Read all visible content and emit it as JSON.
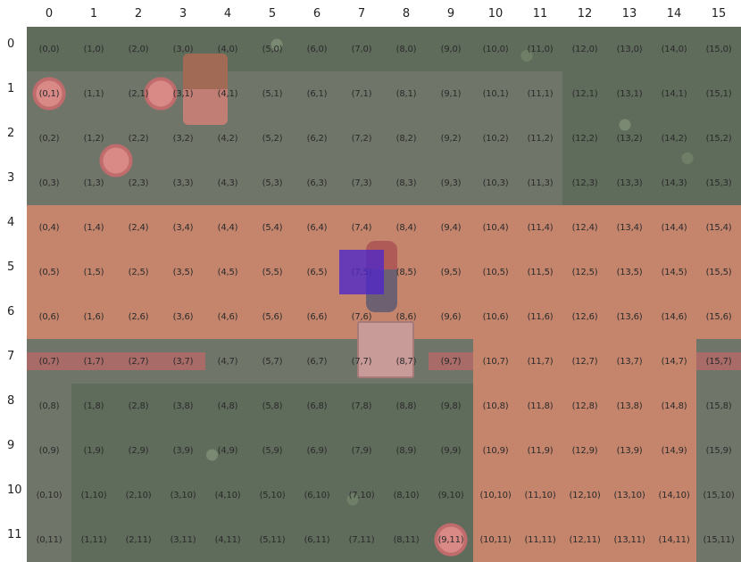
{
  "columns": [
    "0",
    "1",
    "2",
    "3",
    "4",
    "5",
    "6",
    "7",
    "8",
    "9",
    "10",
    "11",
    "12",
    "13",
    "14",
    "15"
  ],
  "rows": [
    "0",
    "1",
    "2",
    "3",
    "4",
    "5",
    "6",
    "7",
    "8",
    "9",
    "10",
    "11"
  ],
  "grid": {
    "cols": 16,
    "rows": 12
  },
  "selected_cell": {
    "x": 7,
    "y": 5
  },
  "colors": {
    "cursor": "#5028c8",
    "path": "#c5856d",
    "grass": "#7c8273",
    "tall_grass": "#5f6b5b",
    "ledge": "#a86b68"
  },
  "terrain": [
    {
      "type": "tall",
      "x": 0,
      "y": 0,
      "w": 16,
      "h": 1
    },
    {
      "type": "tall",
      "x": 12,
      "y": 1,
      "w": 4,
      "h": 3
    },
    {
      "type": "path",
      "x": 0,
      "y": 4,
      "w": 16,
      "h": 3
    },
    {
      "type": "ledge",
      "x": 0,
      "y": 7,
      "w": 4,
      "h": 1
    },
    {
      "type": "ledge",
      "x": 9,
      "y": 7,
      "w": 7,
      "h": 1
    },
    {
      "type": "tall",
      "x": 1,
      "y": 8,
      "w": 9,
      "h": 4
    },
    {
      "type": "path",
      "x": 10,
      "y": 7,
      "w": 5,
      "h": 5
    },
    {
      "type": "flower",
      "x": 0,
      "y": 1,
      "w": 1,
      "h": 1
    },
    {
      "type": "flower",
      "x": 2,
      "y": 1,
      "w": 2,
      "h": 1
    },
    {
      "type": "flower",
      "x": 1,
      "y": 2,
      "w": 2,
      "h": 2
    },
    {
      "type": "flower",
      "x": 9,
      "y": 11,
      "w": 1,
      "h": 1
    }
  ],
  "sprites": [
    {
      "type": "npc",
      "x": 3.5,
      "y": 0.6,
      "w": 1,
      "h": 1.6
    },
    {
      "type": "player",
      "x": 7.6,
      "y": 4.8,
      "w": 0.7,
      "h": 1.6
    },
    {
      "type": "sign",
      "x": 7.4,
      "y": 6.6,
      "w": 1.2,
      "h": 1.2
    }
  ]
}
